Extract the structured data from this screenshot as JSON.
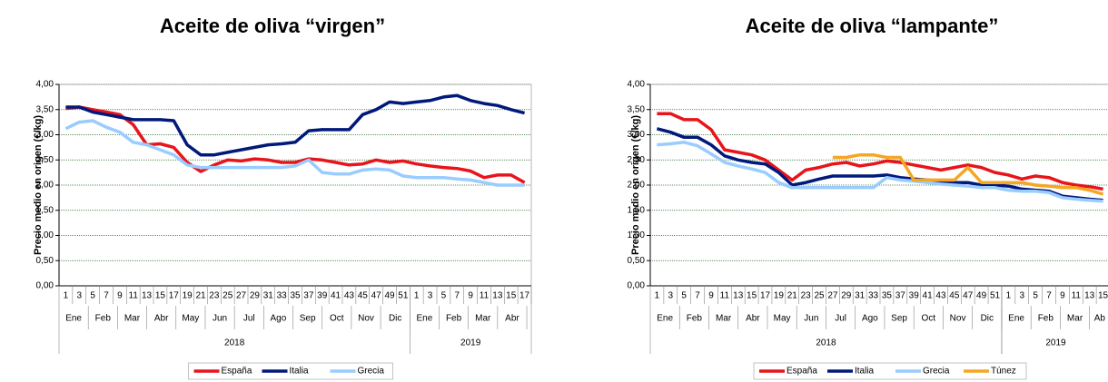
{
  "chart_data": [
    {
      "type": "line",
      "title": "Aceite de oliva “virgen”",
      "y_label": "Precio medio en origen (€/kg)",
      "ylim": [
        0,
        4
      ],
      "yticks": [
        {
          "value": 0,
          "label": "0,00"
        },
        {
          "value": 0.5,
          "label": "0,50"
        },
        {
          "value": 1,
          "label": "1,00"
        },
        {
          "value": 1.5,
          "label": "1,50"
        },
        {
          "value": 2,
          "label": "2,00"
        },
        {
          "value": 2.5,
          "label": "2,50"
        },
        {
          "value": 3,
          "label": "3,00"
        },
        {
          "value": 3.5,
          "label": "3,50"
        },
        {
          "value": 4,
          "label": "4,00"
        }
      ],
      "grid": true,
      "groups": [
        {
          "year": "2018",
          "weeks": [
            "1",
            "3",
            "5",
            "7",
            "9",
            "11",
            "13",
            "15",
            "17",
            "19",
            "21",
            "23",
            "25",
            "27",
            "29",
            "31",
            "33",
            "35",
            "37",
            "39",
            "41",
            "43",
            "45",
            "47",
            "49",
            "51"
          ],
          "months": [
            "Ene",
            "Feb",
            "Mar",
            "Abr",
            "May",
            "Jun",
            "Jul",
            "Ago",
            "Sep",
            "Oct",
            "Nov",
            "Dic"
          ]
        },
        {
          "year": "2019",
          "weeks": [
            "1",
            "3",
            "5",
            "7",
            "9",
            "11",
            "13",
            "15",
            "17"
          ],
          "months": [
            "Ene",
            "Feb",
            "Mar",
            "Abr"
          ]
        }
      ],
      "series": [
        {
          "name": "España",
          "color": "#e8141b",
          "values": [
            3.52,
            3.55,
            3.5,
            3.45,
            3.4,
            3.2,
            2.8,
            2.82,
            2.75,
            2.45,
            2.27,
            2.4,
            2.5,
            2.48,
            2.52,
            2.5,
            2.45,
            2.45,
            2.52,
            2.5,
            2.45,
            2.4,
            2.42,
            2.5,
            2.45,
            2.48,
            2.42,
            2.38,
            2.35,
            2.33,
            2.28,
            2.15,
            2.2,
            2.2,
            2.05
          ]
        },
        {
          "name": "Italia",
          "color": "#00197a",
          "values": [
            3.55,
            3.55,
            3.45,
            3.4,
            3.35,
            3.3,
            3.3,
            3.3,
            3.28,
            2.8,
            2.6,
            2.6,
            2.65,
            2.7,
            2.75,
            2.8,
            2.82,
            2.85,
            3.08,
            3.1,
            3.1,
            3.1,
            3.4,
            3.5,
            3.65,
            3.62,
            3.65,
            3.68,
            3.75,
            3.78,
            3.68,
            3.62,
            3.58,
            3.5,
            3.43
          ]
        },
        {
          "name": "Grecia",
          "color": "#99ccff",
          "values": [
            3.12,
            3.25,
            3.28,
            3.15,
            3.05,
            2.85,
            2.8,
            2.7,
            2.6,
            2.4,
            2.35,
            2.35,
            2.35,
            2.35,
            2.35,
            2.35,
            2.35,
            2.38,
            2.5,
            2.25,
            2.22,
            2.22,
            2.3,
            2.32,
            2.3,
            2.18,
            2.15,
            2.15,
            2.15,
            2.12,
            2.1,
            2.05,
            2.0,
            2.0,
            2.0
          ]
        }
      ]
    },
    {
      "type": "line",
      "title": "Aceite de oliva “lampante”",
      "y_label": "Precio medio en origen (€/kg)",
      "ylim": [
        0,
        4
      ],
      "yticks": [
        {
          "value": 0,
          "label": "0,00"
        },
        {
          "value": 0.5,
          "label": "0,50"
        },
        {
          "value": 1,
          "label": "1,00"
        },
        {
          "value": 1.5,
          "label": "1,50"
        },
        {
          "value": 2,
          "label": "2,00"
        },
        {
          "value": 2.5,
          "label": "2,50"
        },
        {
          "value": 3,
          "label": "3,00"
        },
        {
          "value": 3.5,
          "label": "3,50"
        },
        {
          "value": 4,
          "label": "4,00"
        }
      ],
      "grid": true,
      "groups": [
        {
          "year": "2018",
          "weeks": [
            "1",
            "3",
            "5",
            "7",
            "9",
            "11",
            "13",
            "15",
            "17",
            "19",
            "21",
            "23",
            "25",
            "27",
            "29",
            "31",
            "33",
            "35",
            "37",
            "39",
            "41",
            "43",
            "45",
            "47",
            "49",
            "51"
          ],
          "months": [
            "Ene",
            "Feb",
            "Mar",
            "Abr",
            "May",
            "Jun",
            "Jul",
            "Ago",
            "Sep",
            "Oct",
            "Nov",
            "Dic"
          ]
        },
        {
          "year": "2019",
          "weeks": [
            "1",
            "3",
            "5",
            "7",
            "9",
            "11",
            "13",
            "15"
          ],
          "months": [
            "Ene",
            "Feb",
            "Mar",
            "Ab"
          ]
        }
      ],
      "series": [
        {
          "name": "España",
          "color": "#e8141b",
          "values": [
            3.42,
            3.42,
            3.3,
            3.3,
            3.1,
            2.7,
            2.65,
            2.6,
            2.5,
            2.3,
            2.1,
            2.3,
            2.35,
            2.42,
            2.45,
            2.38,
            2.42,
            2.48,
            2.45,
            2.4,
            2.35,
            2.3,
            2.35,
            2.4,
            2.35,
            2.25,
            2.2,
            2.12,
            2.18,
            2.15,
            2.05,
            2.0,
            1.97,
            1.92
          ]
        },
        {
          "name": "Italia",
          "color": "#00197a",
          "values": [
            3.12,
            3.05,
            2.95,
            2.95,
            2.8,
            2.58,
            2.5,
            2.45,
            2.42,
            2.25,
            2.0,
            2.05,
            2.12,
            2.18,
            2.18,
            2.18,
            2.18,
            2.2,
            2.15,
            2.12,
            2.1,
            2.08,
            2.05,
            2.05,
            2.0,
            2.0,
            1.98,
            1.92,
            1.9,
            1.88,
            1.78,
            1.75,
            1.72,
            1.7
          ]
        },
        {
          "name": "Grecia",
          "color": "#99ccff",
          "values": [
            2.8,
            2.82,
            2.85,
            2.78,
            2.62,
            2.45,
            2.38,
            2.32,
            2.25,
            2.05,
            1.95,
            1.95,
            1.95,
            1.95,
            1.95,
            1.95,
            1.95,
            2.15,
            2.1,
            2.08,
            2.05,
            2.02,
            2.0,
            1.98,
            1.95,
            1.95,
            1.9,
            1.88,
            1.88,
            1.85,
            1.75,
            1.72,
            1.7,
            1.68
          ]
        },
        {
          "name": "Túnez",
          "color": "#f5a623",
          "values": [
            null,
            null,
            null,
            null,
            null,
            null,
            null,
            null,
            null,
            null,
            null,
            null,
            null,
            2.55,
            2.55,
            2.6,
            2.6,
            2.55,
            2.55,
            2.1,
            2.1,
            2.1,
            2.1,
            2.35,
            2.05,
            2.05,
            2.05,
            2.05,
            2.0,
            1.98,
            1.95,
            1.95,
            1.9,
            1.82
          ]
        }
      ]
    }
  ]
}
